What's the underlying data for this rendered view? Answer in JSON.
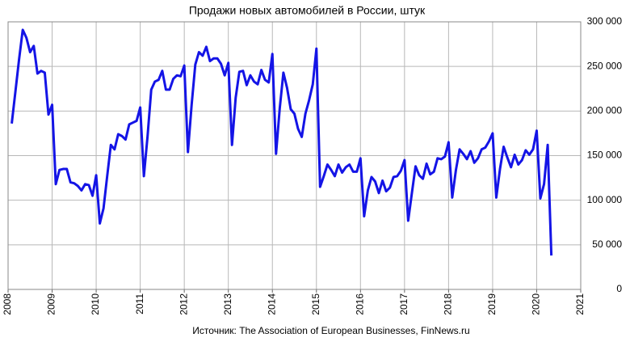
{
  "chart_data": {
    "type": "line",
    "title": "Продажи новых автомобилей в России, штук",
    "source": "Источник: The Association of European Businesses, FinNews.ru",
    "xlim": [
      2008,
      2021
    ],
    "xticks": [
      2008,
      2009,
      2010,
      2011,
      2012,
      2013,
      2014,
      2015,
      2016,
      2017,
      2018,
      2019,
      2020,
      2021
    ],
    "ylim": [
      0,
      300000
    ],
    "yticks": [
      0,
      {
        "value": 50000,
        "label": "50 000"
      },
      {
        "value": 100000,
        "label": "100 000"
      },
      {
        "value": 150000,
        "label": "150 000"
      },
      {
        "value": 200000,
        "label": "200 000"
      },
      {
        "value": 250000,
        "label": "250 000"
      },
      {
        "value": 300000,
        "label": "300 000"
      }
    ],
    "grid": true,
    "series": [
      {
        "color": "#1414e6",
        "x": [
          2008.083,
          2008.167,
          2008.25,
          2008.333,
          2008.417,
          2008.5,
          2008.583,
          2008.667,
          2008.75,
          2008.833,
          2008.917,
          2009,
          2009.083,
          2009.167,
          2009.25,
          2009.333,
          2009.417,
          2009.5,
          2009.583,
          2009.667,
          2009.75,
          2009.833,
          2009.917,
          2010,
          2010.083,
          2010.167,
          2010.25,
          2010.333,
          2010.417,
          2010.5,
          2010.583,
          2010.667,
          2010.75,
          2010.833,
          2010.917,
          2011,
          2011.083,
          2011.167,
          2011.25,
          2011.333,
          2011.417,
          2011.5,
          2011.583,
          2011.667,
          2011.75,
          2011.833,
          2011.917,
          2012,
          2012.083,
          2012.167,
          2012.25,
          2012.333,
          2012.417,
          2012.5,
          2012.583,
          2012.667,
          2012.75,
          2012.833,
          2012.917,
          2013,
          2013.083,
          2013.167,
          2013.25,
          2013.333,
          2013.417,
          2013.5,
          2013.583,
          2013.667,
          2013.75,
          2013.833,
          2013.917,
          2014,
          2014.083,
          2014.167,
          2014.25,
          2014.333,
          2014.417,
          2014.5,
          2014.583,
          2014.667,
          2014.75,
          2014.833,
          2014.917,
          2015,
          2015.083,
          2015.167,
          2015.25,
          2015.333,
          2015.417,
          2015.5,
          2015.583,
          2015.667,
          2015.75,
          2015.833,
          2015.917,
          2016,
          2016.083,
          2016.167,
          2016.25,
          2016.333,
          2016.417,
          2016.5,
          2016.583,
          2016.667,
          2016.75,
          2016.833,
          2016.917,
          2017,
          2017.083,
          2017.167,
          2017.25,
          2017.333,
          2017.417,
          2017.5,
          2017.583,
          2017.667,
          2017.75,
          2017.833,
          2017.917,
          2018,
          2018.083,
          2018.167,
          2018.25,
          2018.333,
          2018.417,
          2018.5,
          2018.583,
          2018.667,
          2018.75,
          2018.833,
          2018.917,
          2019,
          2019.083,
          2019.167,
          2019.25,
          2019.333,
          2019.417,
          2019.5,
          2019.583,
          2019.667,
          2019.75,
          2019.833,
          2019.917,
          2020,
          2020.083,
          2020.167,
          2020.25,
          2020.333
        ],
        "values": [
          186000,
          222000,
          258000,
          291000,
          282000,
          266000,
          273000,
          242000,
          245000,
          243000,
          196000,
          207000,
          118000,
          134000,
          135000,
          135000,
          120000,
          119000,
          116000,
          111000,
          118000,
          117000,
          105000,
          128000,
          74000,
          91000,
          127000,
          162000,
          157000,
          174000,
          172000,
          168000,
          185000,
          187000,
          189000,
          204000,
          127000,
          172000,
          224000,
          233000,
          235000,
          245000,
          224000,
          224000,
          236000,
          240000,
          239000,
          251000,
          154000,
          207000,
          252000,
          266000,
          262000,
          272000,
          256000,
          259000,
          259000,
          253000,
          240000,
          254000,
          162000,
          215000,
          244000,
          245000,
          229000,
          240000,
          233000,
          230000,
          246000,
          235000,
          232000,
          264000,
          152000,
          203000,
          243000,
          226000,
          202000,
          197000,
          180000,
          171000,
          197000,
          212000,
          230000,
          270000,
          115000,
          127000,
          140000,
          134000,
          127000,
          140000,
          131000,
          137000,
          140000,
          132000,
          132000,
          147000,
          82000,
          111000,
          126000,
          121000,
          108000,
          122000,
          110000,
          114000,
          126000,
          127000,
          133000,
          145000,
          77000,
          108000,
          138000,
          128000,
          124000,
          141000,
          129000,
          132000,
          147000,
          146000,
          149000,
          165000,
          103000,
          134000,
          157000,
          152000,
          146000,
          155000,
          142000,
          147000,
          157000,
          159000,
          166000,
          175000,
          103000,
          135000,
          160000,
          148000,
          137000,
          151000,
          140000,
          145000,
          156000,
          151000,
          157000,
          178000,
          102000,
          118000,
          162000,
          38000
        ]
      }
    ]
  }
}
